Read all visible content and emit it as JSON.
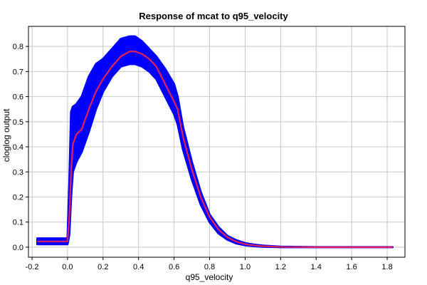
{
  "chart_data": {
    "type": "line",
    "title": "Response of mcat to q95_velocity",
    "xlabel": "q95_velocity",
    "ylabel": "cloglog output",
    "xlim": [
      -0.22,
      1.9
    ],
    "ylim": [
      -0.04,
      0.88
    ],
    "grid": true,
    "x_ticks": [
      -0.2,
      0.0,
      0.2,
      0.4,
      0.6,
      0.8,
      1.0,
      1.2,
      1.4,
      1.6,
      1.8
    ],
    "x_tick_labels": [
      "-0.2",
      "0.0",
      "0.2",
      "0.4",
      "0.6",
      "0.8",
      "1.0",
      "1.2",
      "1.4",
      "1.6",
      "1.8"
    ],
    "y_ticks": [
      0.0,
      0.1,
      0.2,
      0.3,
      0.4,
      0.5,
      0.6,
      0.7,
      0.8
    ],
    "y_tick_labels": [
      "0.0",
      "0.1",
      "0.2",
      "0.3",
      "0.4",
      "0.5",
      "0.6",
      "0.7",
      "0.8"
    ],
    "colors": {
      "band": "#0000ff",
      "mean": "#e0205a",
      "grid": "#c8c8c8"
    },
    "series": [
      {
        "role": "mean",
        "x": [
          -0.17,
          0.0,
          0.01,
          0.02,
          0.03,
          0.05,
          0.08,
          0.12,
          0.16,
          0.2,
          0.25,
          0.3,
          0.35,
          0.38,
          0.42,
          0.46,
          0.5,
          0.55,
          0.6,
          0.62,
          0.65,
          0.7,
          0.75,
          0.8,
          0.85,
          0.9,
          0.95,
          1.0,
          1.05,
          1.1,
          1.2,
          1.4,
          1.6,
          1.83
        ],
        "y": [
          0.023,
          0.023,
          0.12,
          0.3,
          0.41,
          0.45,
          0.47,
          0.55,
          0.62,
          0.67,
          0.72,
          0.76,
          0.78,
          0.78,
          0.77,
          0.75,
          0.72,
          0.65,
          0.58,
          0.55,
          0.44,
          0.31,
          0.2,
          0.12,
          0.07,
          0.04,
          0.022,
          0.012,
          0.007,
          0.004,
          0.001,
          0.0,
          0.0,
          0.0
        ]
      },
      {
        "role": "upper",
        "x": [
          -0.17,
          0.0,
          0.01,
          0.02,
          0.03,
          0.05,
          0.08,
          0.12,
          0.16,
          0.2,
          0.25,
          0.3,
          0.35,
          0.38,
          0.42,
          0.46,
          0.5,
          0.55,
          0.6,
          0.62,
          0.65,
          0.7,
          0.75,
          0.8,
          0.85,
          0.9,
          0.95,
          1.0,
          1.05,
          1.1,
          1.2,
          1.4,
          1.6,
          1.83
        ],
        "y": [
          0.035,
          0.035,
          0.25,
          0.54,
          0.56,
          0.57,
          0.6,
          0.68,
          0.73,
          0.75,
          0.79,
          0.83,
          0.84,
          0.84,
          0.82,
          0.79,
          0.76,
          0.71,
          0.65,
          0.6,
          0.48,
          0.34,
          0.22,
          0.13,
          0.08,
          0.045,
          0.028,
          0.016,
          0.01,
          0.006,
          0.002,
          0.0,
          0.0,
          0.0
        ]
      },
      {
        "role": "lower",
        "x": [
          -0.17,
          0.0,
          0.01,
          0.02,
          0.03,
          0.05,
          0.08,
          0.12,
          0.16,
          0.2,
          0.25,
          0.3,
          0.35,
          0.38,
          0.42,
          0.46,
          0.5,
          0.55,
          0.6,
          0.62,
          0.65,
          0.7,
          0.75,
          0.8,
          0.85,
          0.9,
          0.95,
          1.0,
          1.05,
          1.1,
          1.2,
          1.4,
          1.6,
          1.83
        ],
        "y": [
          0.012,
          0.012,
          0.05,
          0.2,
          0.3,
          0.34,
          0.38,
          0.46,
          0.55,
          0.62,
          0.68,
          0.72,
          0.73,
          0.73,
          0.72,
          0.7,
          0.67,
          0.6,
          0.53,
          0.49,
          0.39,
          0.27,
          0.17,
          0.1,
          0.055,
          0.03,
          0.015,
          0.008,
          0.004,
          0.002,
          0.0,
          0.0,
          0.0,
          0.0
        ]
      }
    ]
  }
}
